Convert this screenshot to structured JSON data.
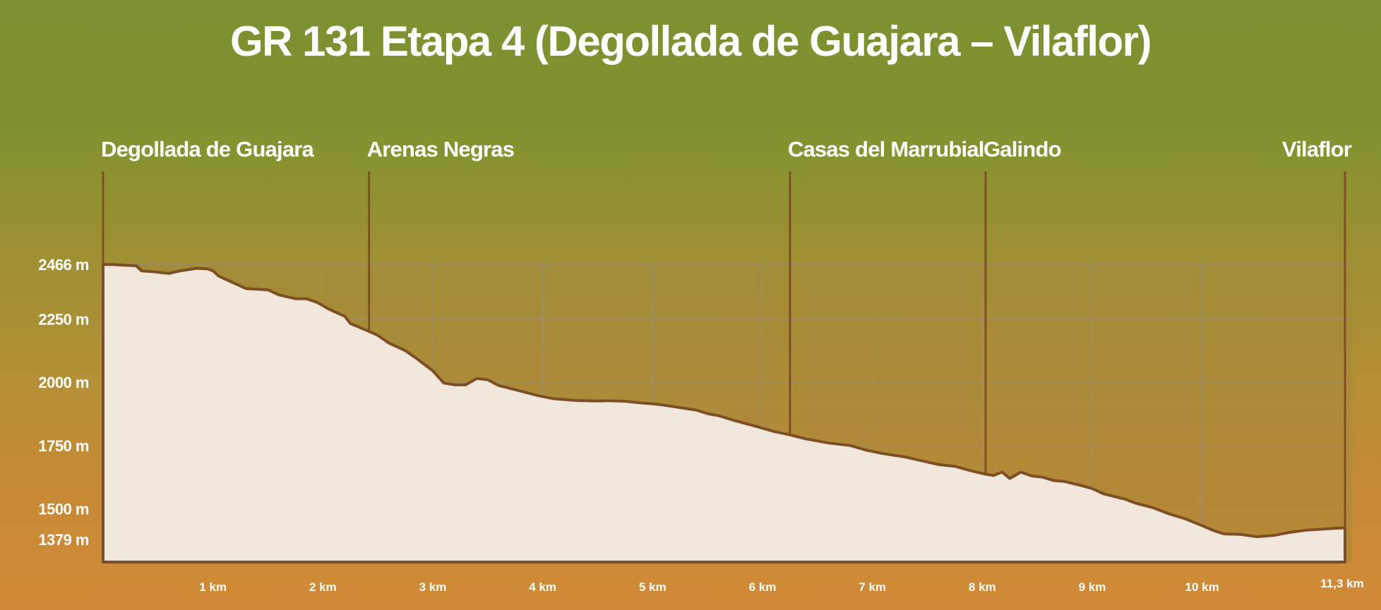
{
  "chart_data": {
    "type": "area",
    "title": "GR 131 Etapa 4 (Degollada de Guajara – Vilaflor)",
    "xlabel": "",
    "ylabel": "",
    "xlim": [
      0,
      11.3
    ],
    "ylim": [
      1300,
      2466
    ],
    "grid": true,
    "x_ticks": [
      {
        "value": 1,
        "label": "1 km"
      },
      {
        "value": 2,
        "label": "2 km"
      },
      {
        "value": 3,
        "label": "3 km"
      },
      {
        "value": 4,
        "label": "4 km"
      },
      {
        "value": 5,
        "label": "5 km"
      },
      {
        "value": 6,
        "label": "6 km"
      },
      {
        "value": 7,
        "label": "7 km"
      },
      {
        "value": 8,
        "label": "8 km"
      },
      {
        "value": 9,
        "label": "9 km"
      },
      {
        "value": 10,
        "label": "10 km"
      },
      {
        "value": 11.3,
        "label": "11,3 km"
      }
    ],
    "y_ticks": [
      {
        "value": 2466,
        "label": "2466 m"
      },
      {
        "value": 2250,
        "label": "2250 m"
      },
      {
        "value": 2000,
        "label": "2000 m"
      },
      {
        "value": 1750,
        "label": "1750 m"
      },
      {
        "value": 1500,
        "label": "1500 m"
      },
      {
        "value": 1379,
        "label": "1379 m"
      }
    ],
    "waypoints": [
      {
        "name": "Degollada de Guajara",
        "km": 0
      },
      {
        "name": "Arenas Negras",
        "km": 2.42
      },
      {
        "name": "Casas del Marrubial",
        "km": 6.25
      },
      {
        "name": "Galindo",
        "km": 8.03
      },
      {
        "name": "Vilaflor",
        "km": 11.3
      }
    ],
    "series": [
      {
        "x": [
          0,
          0.08,
          0.3,
          0.35,
          0.45,
          0.6,
          0.7,
          0.85,
          0.95,
          1.0,
          1.05,
          1.15,
          1.3,
          1.5,
          1.6,
          1.75,
          1.85,
          1.95,
          2.05,
          2.2,
          2.25,
          2.4,
          2.5,
          2.6,
          2.75,
          2.85,
          3.0,
          3.1,
          3.2,
          3.3,
          3.4,
          3.5,
          3.6,
          3.8,
          3.95,
          4.1,
          4.3,
          4.5,
          4.6,
          4.75,
          4.9,
          5.0,
          5.1,
          5.25,
          5.4,
          5.5,
          5.6,
          5.75,
          5.95,
          6.1,
          6.25,
          6.4,
          6.6,
          6.8,
          6.95,
          7.1,
          7.3,
          7.45,
          7.6,
          7.75,
          7.9,
          8.03,
          8.1,
          8.18,
          8.25,
          8.35,
          8.45,
          8.55,
          8.65,
          8.75,
          8.9,
          9.0,
          9.1,
          9.3,
          9.4,
          9.55,
          9.7,
          9.85,
          10.0,
          10.1,
          10.2,
          10.35,
          10.5,
          10.65,
          10.8,
          10.95,
          11.2,
          11.3
        ],
        "y": [
          2465,
          2465,
          2460,
          2440,
          2437,
          2430,
          2440,
          2450,
          2448,
          2440,
          2420,
          2400,
          2370,
          2365,
          2345,
          2330,
          2330,
          2315,
          2290,
          2260,
          2232,
          2205,
          2185,
          2155,
          2125,
          2095,
          2045,
          1997,
          1990,
          1990,
          2015,
          2010,
          1987,
          1965,
          1948,
          1935,
          1928,
          1926,
          1927,
          1925,
          1918,
          1915,
          1910,
          1900,
          1890,
          1876,
          1868,
          1848,
          1825,
          1806,
          1792,
          1776,
          1760,
          1750,
          1731,
          1718,
          1705,
          1690,
          1675,
          1668,
          1650,
          1637,
          1632,
          1645,
          1620,
          1645,
          1630,
          1625,
          1612,
          1608,
          1592,
          1580,
          1560,
          1538,
          1522,
          1505,
          1480,
          1460,
          1434,
          1415,
          1401,
          1399,
          1390,
          1395,
          1407,
          1416,
          1423,
          1425
        ]
      }
    ],
    "colors": {
      "fill": "#f1e7dc",
      "line": "#7d4f25",
      "plot_background": "#a4893a",
      "grid": "#9c8c7c"
    }
  }
}
